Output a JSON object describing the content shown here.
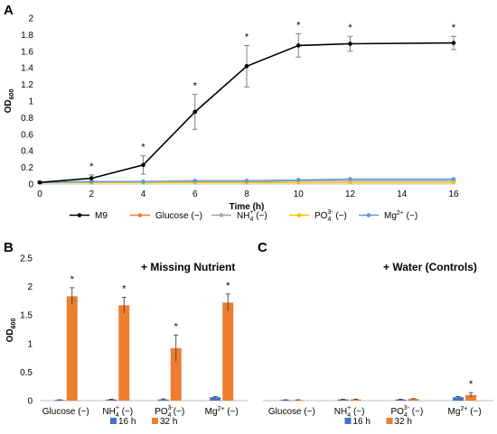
{
  "chart_data": [
    {
      "panel": "A",
      "type": "line",
      "xlabel": "Time (h)",
      "ylabel_main": "OD",
      "ylabel_sub": "600",
      "xlim": [
        0,
        16
      ],
      "ylim": [
        0,
        2
      ],
      "x_ticks": [
        "0",
        "2",
        "4",
        "6",
        "8",
        "10",
        "12",
        "14",
        "16"
      ],
      "y_ticks": [
        "0",
        "0.2",
        "0.4",
        "0.6",
        "0.8",
        "1",
        "1.2",
        "1.4",
        "1.6",
        "1.8",
        "2"
      ],
      "x": [
        0,
        2,
        4,
        6,
        8,
        10,
        12,
        16
      ],
      "series": [
        {
          "name": "M9",
          "color": "#000000",
          "values": [
            0.02,
            0.07,
            0.23,
            0.87,
            1.42,
            1.67,
            1.69,
            1.7
          ],
          "errors": [
            0.01,
            0.04,
            0.11,
            0.21,
            0.25,
            0.14,
            0.09,
            0.08
          ]
        },
        {
          "name_parts": [
            "Glucose (−)"
          ],
          "color": "#ED7D31",
          "values": [
            0.02,
            0.02,
            0.02,
            0.02,
            0.02,
            0.02,
            0.02,
            0.02
          ],
          "errors": [
            0.005,
            0.005,
            0.005,
            0.005,
            0.005,
            0.005,
            0.005,
            0.005
          ]
        },
        {
          "name_parts": [
            "NH",
            "4",
            "+",
            " (−)"
          ],
          "color": "#A5A5A5",
          "values": [
            0.02,
            0.02,
            0.03,
            0.03,
            0.03,
            0.04,
            0.04,
            0.04
          ],
          "errors": [
            0.005,
            0.005,
            0.005,
            0.005,
            0.005,
            0.01,
            0.01,
            0.01
          ]
        },
        {
          "name_parts": [
            "PO",
            "4",
            "3-",
            " (−)"
          ],
          "color": "#FFC000",
          "values": [
            0.02,
            0.02,
            0.02,
            0.02,
            0.02,
            0.02,
            0.02,
            0.02
          ],
          "errors": [
            0.005,
            0.005,
            0.005,
            0.005,
            0.005,
            0.005,
            0.005,
            0.005
          ]
        },
        {
          "name_parts": [
            "Mg",
            "",
            "2+",
            " (−)"
          ],
          "color": "#5B9BD5",
          "values": [
            0.02,
            0.03,
            0.03,
            0.04,
            0.04,
            0.05,
            0.06,
            0.06
          ],
          "errors": [
            0.005,
            0.01,
            0.01,
            0.01,
            0.01,
            0.01,
            0.01,
            0.01
          ]
        }
      ],
      "significance": {
        "x": [
          2,
          4,
          6,
          8,
          10,
          12,
          16
        ],
        "label": "*"
      },
      "legend_placement": "bottom"
    },
    {
      "panel": "B",
      "type": "bar",
      "annotation": "+ Missing Nutrient",
      "ylabel_main": "OD",
      "ylabel_sub": "600",
      "ylim": [
        0,
        2.5
      ],
      "y_ticks": [
        "0",
        "0.5",
        "1",
        "1.5",
        "2",
        "2.5"
      ],
      "categories": [
        [
          "Glucose (−)"
        ],
        [
          "NH",
          "4",
          "+",
          " (−)"
        ],
        [
          "PO",
          "4",
          "3-",
          "(−)"
        ],
        [
          "Mg",
          "",
          "2+",
          " (−)"
        ]
      ],
      "series": [
        {
          "name": "16 h",
          "color": "#4472C4",
          "values": [
            0.01,
            0.02,
            0.02,
            0.06
          ],
          "errors": [
            0.005,
            0.005,
            0.01,
            0.01
          ]
        },
        {
          "name": "32 h",
          "color": "#ED7D31",
          "values": [
            1.83,
            1.67,
            0.92,
            1.72
          ],
          "errors": [
            0.15,
            0.14,
            0.23,
            0.15
          ]
        }
      ],
      "significance_label": "*",
      "legend_placement": "bottom"
    },
    {
      "panel": "C",
      "type": "bar",
      "annotation": "+ Water (Controls)",
      "ylim": [
        0,
        2.5
      ],
      "categories": [
        [
          "Glucose (−)"
        ],
        [
          "NH",
          "4",
          "+",
          " (−)"
        ],
        [
          "PO",
          "4",
          "3-",
          " (−)"
        ],
        [
          "Mg",
          "",
          "2+",
          " (−)"
        ]
      ],
      "series": [
        {
          "name": "16 h",
          "color": "#4472C4",
          "values": [
            0.01,
            0.02,
            0.02,
            0.06
          ],
          "errors": [
            0.005,
            0.005,
            0.005,
            0.01
          ]
        },
        {
          "name": "32 h",
          "color": "#ED7D31",
          "values": [
            0.01,
            0.02,
            0.03,
            0.1
          ],
          "errors": [
            0.005,
            0.005,
            0.005,
            0.04
          ]
        }
      ],
      "significance_label": "*",
      "significance_index": 3,
      "legend_placement": "bottom"
    }
  ]
}
